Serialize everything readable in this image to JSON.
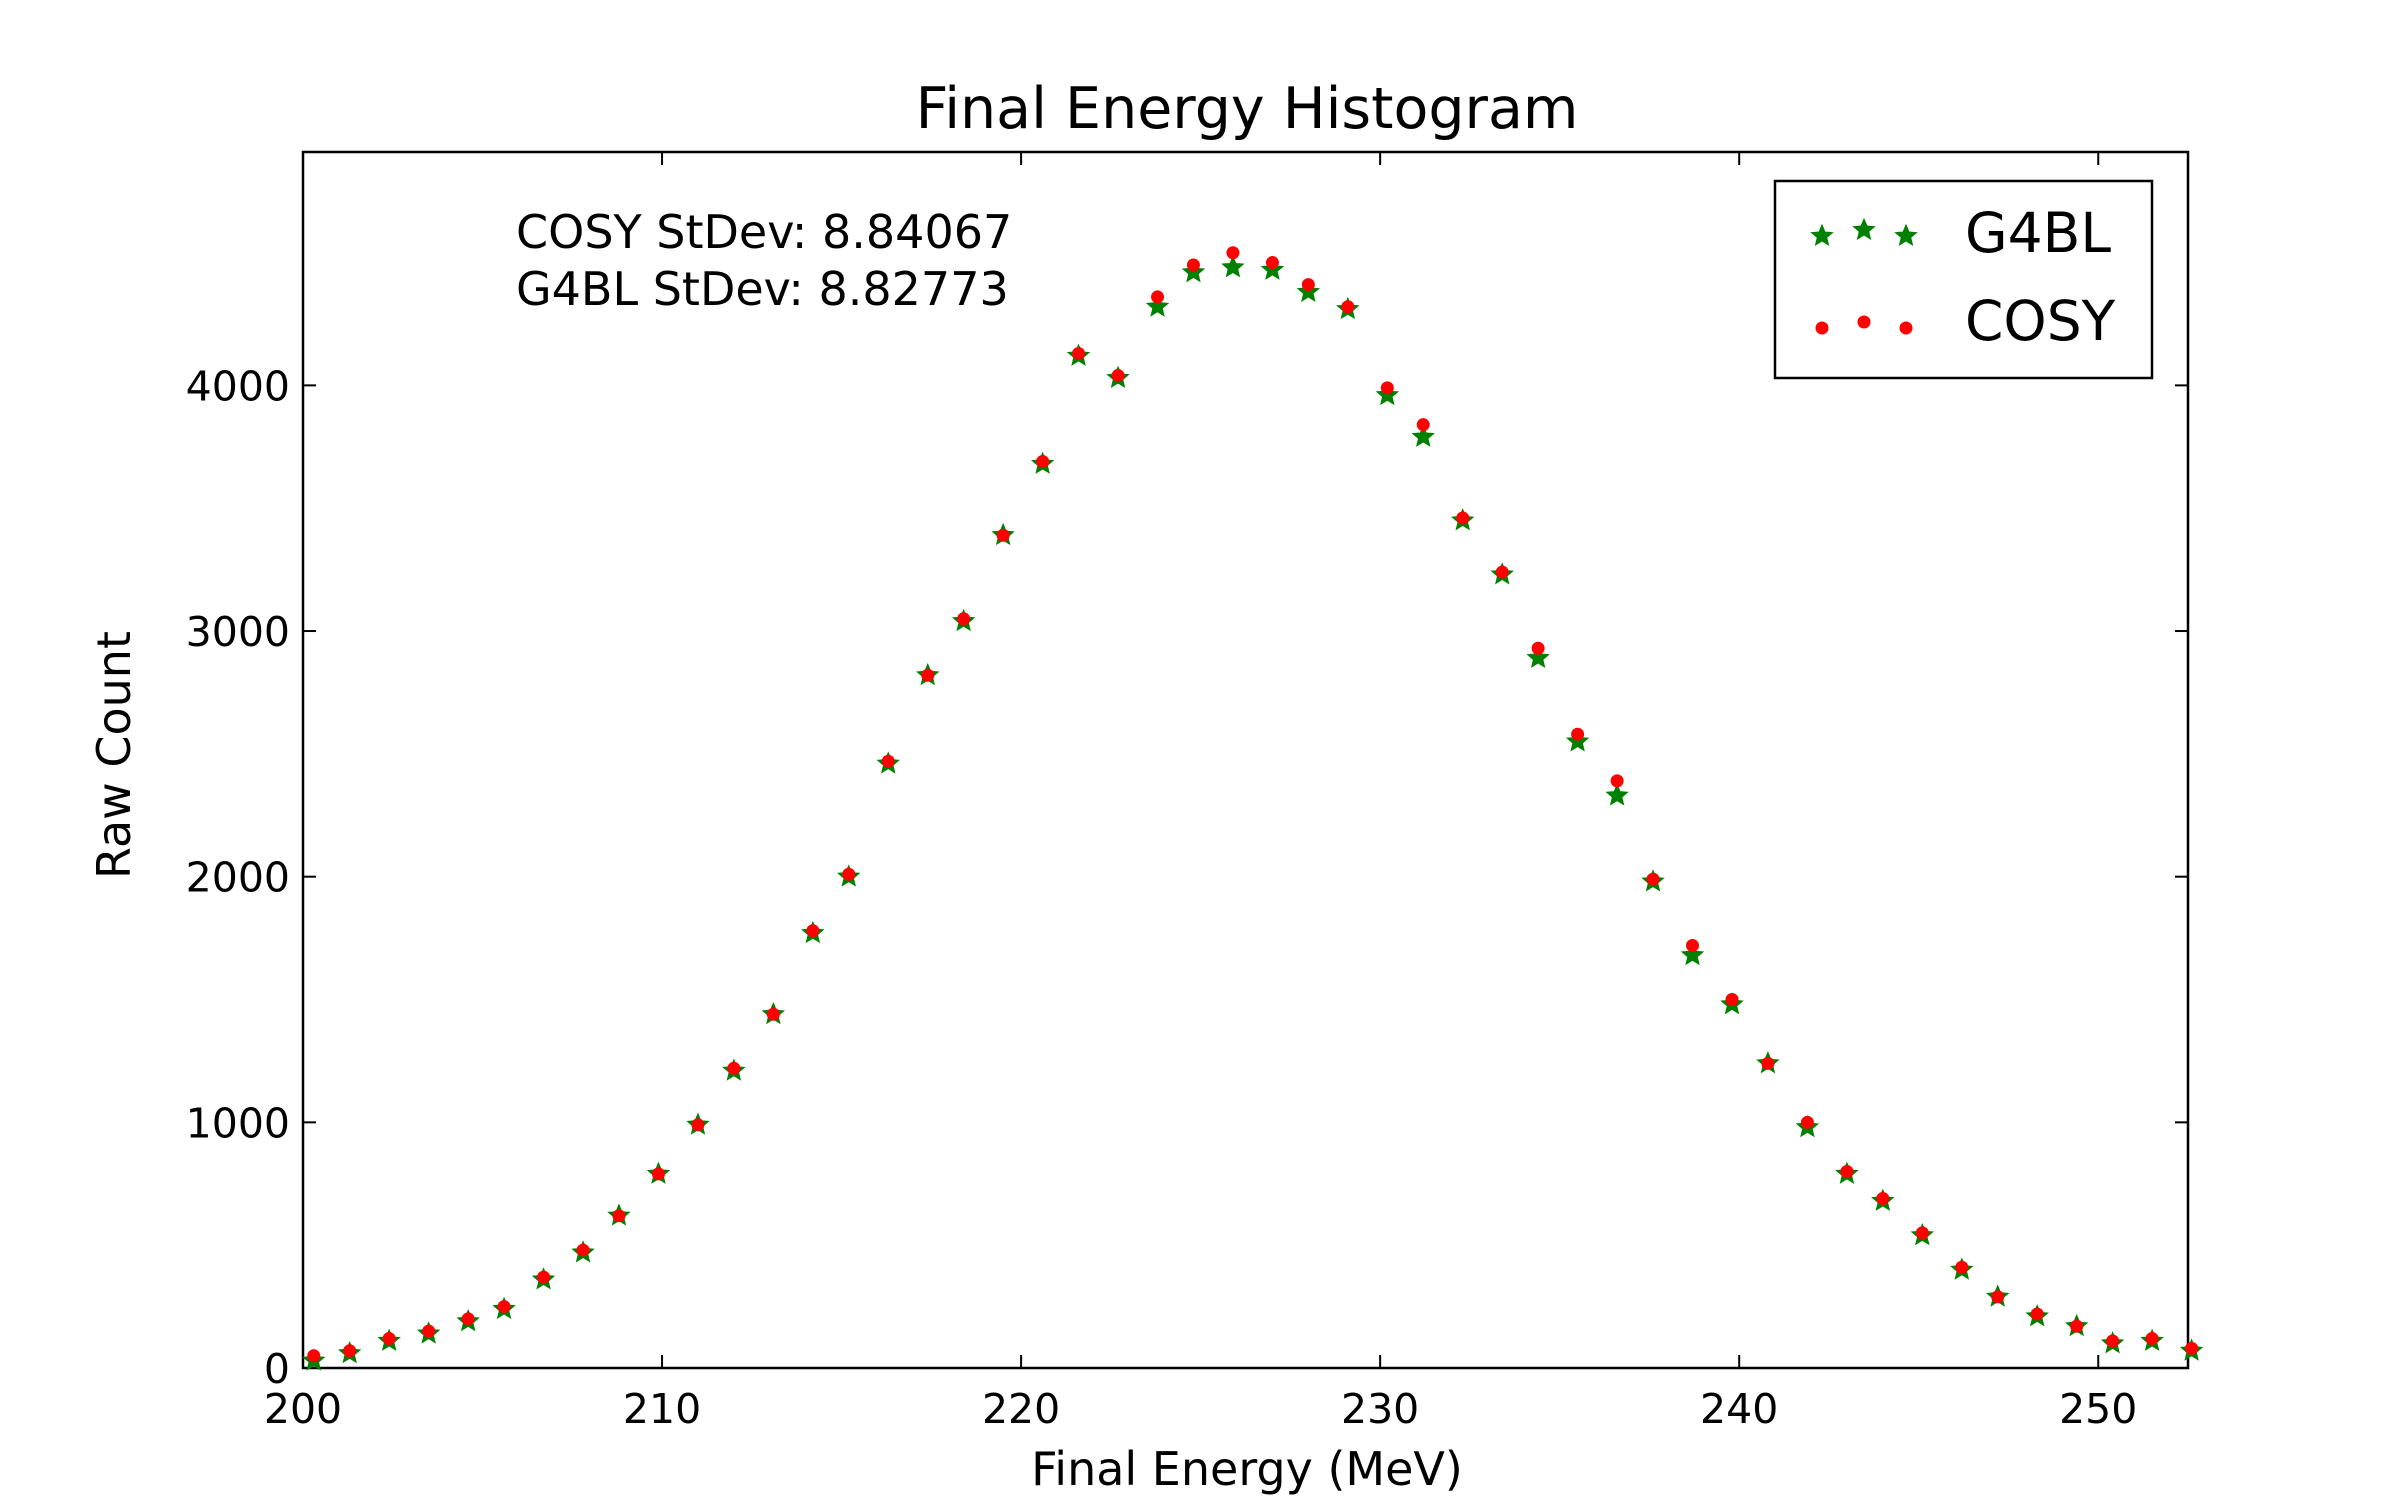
{
  "colors": {
    "g4bl": "#008000",
    "cosy": "#ff0000",
    "axes": "#000000",
    "background": "#ffffff"
  },
  "chart_data": {
    "type": "scatter",
    "title": "Final Energy Histogram",
    "xlabel": "Final Energy (MeV)",
    "ylabel": "Raw Count",
    "xlim": [
      200,
      252.5
    ],
    "ylim": [
      0,
      4950
    ],
    "x_ticks": [
      200,
      210,
      220,
      230,
      240,
      250
    ],
    "y_ticks": [
      0,
      1000,
      2000,
      3000,
      4000
    ],
    "grid": false,
    "legend_position": "top-right",
    "annotations": [
      "COSY StDev: 8.84067",
      "G4BL StDev: 8.82773"
    ],
    "x": [
      200.3,
      201.3,
      202.4,
      203.5,
      204.6,
      205.6,
      206.7,
      207.8,
      208.8,
      209.9,
      211.0,
      212.0,
      213.1,
      214.2,
      215.2,
      216.3,
      217.4,
      218.4,
      219.5,
      220.6,
      221.6,
      222.7,
      223.8,
      224.8,
      225.9,
      227.0,
      228.0,
      229.1,
      230.2,
      231.2,
      232.3,
      233.4,
      234.4,
      235.5,
      236.6,
      237.6,
      238.7,
      239.8,
      240.8,
      241.9,
      243.0,
      244.0,
      245.1,
      246.2,
      247.2,
      248.3,
      249.4,
      250.4,
      251.5,
      252.6
    ],
    "series": [
      {
        "name": "G4BL",
        "marker": "star",
        "values": [
          30,
          60,
          110,
          140,
          190,
          240,
          360,
          470,
          620,
          790,
          990,
          1210,
          1440,
          1770,
          2000,
          2460,
          2820,
          3040,
          3390,
          3680,
          4120,
          4030,
          4320,
          4460,
          4480,
          4470,
          4380,
          4310,
          3960,
          3790,
          3450,
          3230,
          2890,
          2550,
          2330,
          1980,
          1680,
          1480,
          1240,
          980,
          790,
          680,
          540,
          400,
          290,
          210,
          170,
          100,
          110,
          70
        ]
      },
      {
        "name": "COSY",
        "marker": "circle",
        "values": [
          50,
          70,
          120,
          150,
          200,
          250,
          370,
          480,
          620,
          790,
          990,
          1220,
          1440,
          1780,
          2010,
          2470,
          2820,
          3050,
          3390,
          3690,
          4130,
          4040,
          4360,
          4490,
          4540,
          4500,
          4410,
          4320,
          3990,
          3840,
          3460,
          3240,
          2930,
          2580,
          2390,
          1990,
          1720,
          1500,
          1240,
          1000,
          800,
          690,
          550,
          410,
          290,
          220,
          170,
          110,
          120,
          80
        ]
      }
    ]
  }
}
